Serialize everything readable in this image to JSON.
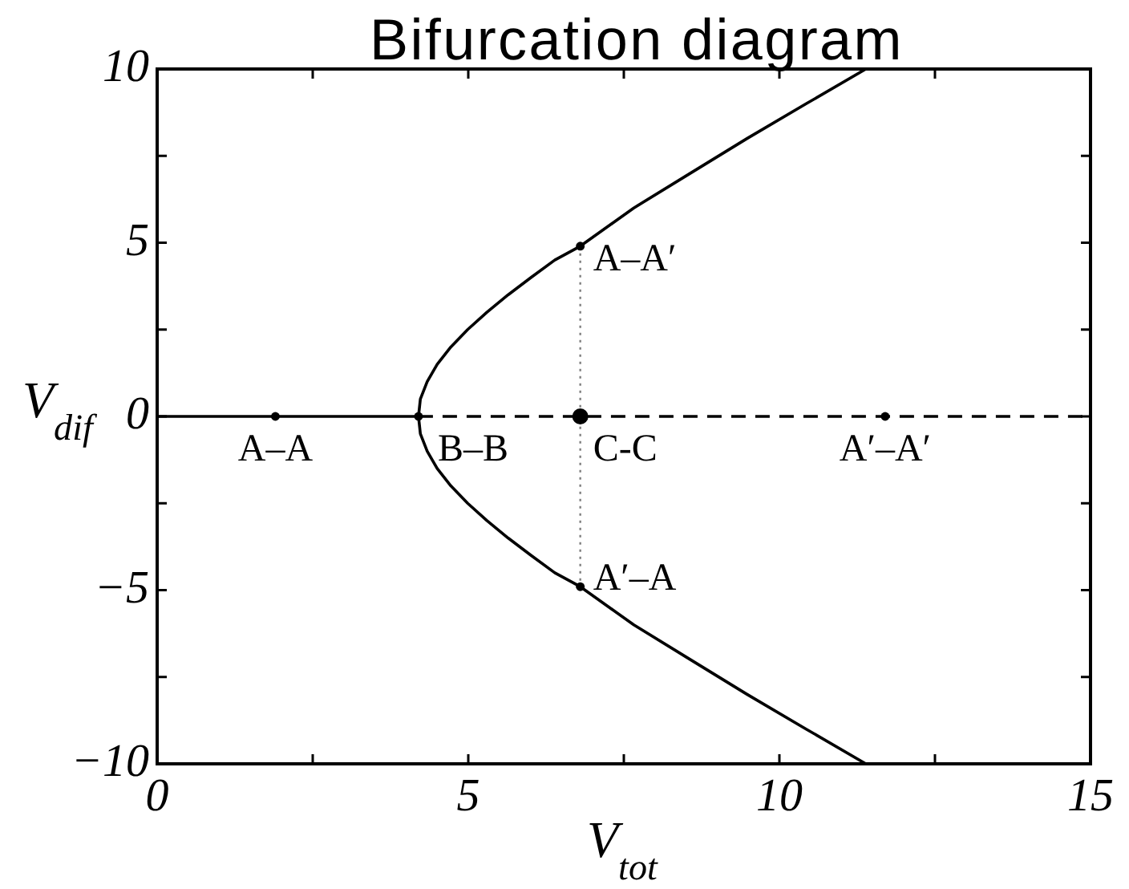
{
  "chart_data": {
    "type": "line",
    "title": "Bifurcation diagram",
    "xlabel": "V$_{tot}$",
    "ylabel": "V$_{dif}$",
    "xlim": [
      0,
      15
    ],
    "ylim": [
      -10,
      10
    ],
    "xticks": [
      0,
      {
        "value": 2.5,
        "label": null
      },
      5,
      {
        "value": 7.5,
        "label": null
      },
      10,
      {
        "value": 12.5,
        "label": null
      },
      15
    ],
    "yticks": [
      -10,
      {
        "value": -7.5,
        "label": null
      },
      -5,
      {
        "value": -2.5,
        "label": null
      },
      0,
      {
        "value": 2.5,
        "label": null
      },
      5,
      {
        "value": 7.5,
        "label": null
      },
      10
    ],
    "grid": false,
    "legend": false,
    "series": [
      {
        "color": "#000000",
        "x": [
          0,
          4.2
        ],
        "values": [
          0,
          0
        ],
        "line_style": "solid"
      },
      {
        "color": "#000000",
        "x": [
          4.2,
          15
        ],
        "values": [
          0,
          0
        ],
        "line_style": "dashed"
      },
      {
        "color": "#000000",
        "x": [
          4.2,
          4.23,
          4.34,
          4.5,
          4.72,
          4.99,
          5.3,
          5.64,
          6.01,
          6.39,
          6.8,
          7.66,
          8.57,
          9.48,
          10.43,
          11.39
        ],
        "values": [
          0,
          0.5,
          1,
          1.5,
          2,
          2.5,
          3,
          3.5,
          4,
          4.5,
          4.9,
          6,
          7,
          8,
          9,
          10
        ],
        "line_style": "solid"
      },
      {
        "color": "#000000",
        "x": [
          4.2,
          4.23,
          4.34,
          4.5,
          4.72,
          4.99,
          5.3,
          5.64,
          6.01,
          6.39,
          6.8,
          7.66,
          8.57,
          9.48,
          10.43,
          11.39
        ],
        "values": [
          0,
          -0.5,
          -1,
          -1.5,
          -2,
          -2.5,
          -3,
          -3.5,
          -4,
          -4.5,
          -4.9,
          -6,
          -7,
          -8,
          -9,
          -10
        ],
        "line_style": "solid"
      },
      {
        "color": "#808080",
        "x": [
          6.8,
          6.8
        ],
        "values": [
          4.9,
          -4.9
        ],
        "line_style": "dotted"
      },
      {
        "type": "scatter",
        "color": "#000000",
        "marker": "circle",
        "x": [
          1.9,
          4.2,
          6.8,
          11.7,
          6.8,
          6.8
        ],
        "values": [
          0,
          0,
          0,
          0,
          4.9,
          -4.9
        ],
        "sizes": [
          0.3,
          0.3,
          1,
          0.3,
          0.3,
          0.3
        ]
      }
    ],
    "annotations": [
      {
        "text": "A–A",
        "x": 1.9,
        "y": 0
      },
      {
        "text": "B–B",
        "x": 4.2,
        "y": 0
      },
      {
        "text": "C-C",
        "x": 6.8,
        "y": 0
      },
      {
        "text": "A′–A′",
        "x": 11.7,
        "y": 0
      },
      {
        "text": "A–A′",
        "x": 6.8,
        "y": 4.9
      },
      {
        "text": "A′–A",
        "x": 6.8,
        "y": -4.9
      }
    ]
  }
}
